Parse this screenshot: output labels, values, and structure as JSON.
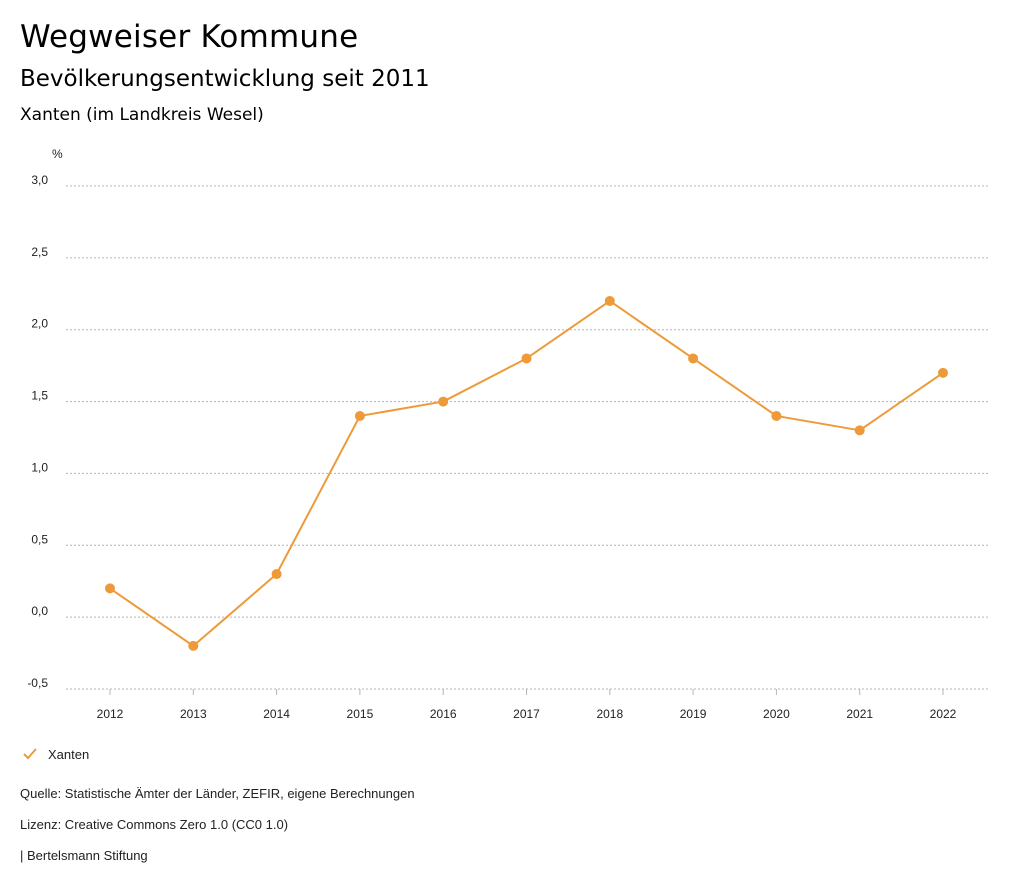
{
  "header": {
    "title": "Wegweiser Kommune",
    "subtitle": "Bevölkerungsentwicklung seit 2011",
    "region": "Xanten (im Landkreis Wesel)"
  },
  "colors": {
    "series": "#EE9A3A",
    "grid": "#B5B5B5",
    "text": "#222222"
  },
  "chart_data": {
    "type": "line",
    "title": "Bevölkerungsentwicklung seit 2011",
    "unit_label": "%",
    "xlabel": "",
    "ylabel": "%",
    "x": [
      "2012",
      "2013",
      "2014",
      "2015",
      "2016",
      "2017",
      "2018",
      "2019",
      "2020",
      "2021",
      "2022"
    ],
    "series": [
      {
        "name": "Xanten",
        "values": [
          0.2,
          -0.2,
          0.3,
          1.4,
          1.5,
          1.8,
          2.2,
          1.8,
          1.4,
          1.3,
          1.7
        ]
      }
    ],
    "ylim": [
      -0.5,
      3.0
    ],
    "yticks": [
      3.0,
      2.5,
      2.0,
      1.5,
      1.0,
      0.5,
      0.0,
      -0.5
    ],
    "ytick_labels": [
      "3,0",
      "2,5",
      "2,0",
      "1,5",
      "1,0",
      "0,5",
      "0,0",
      "-0,5"
    ],
    "grid": true,
    "legend_position": "bottom-left"
  },
  "legend": {
    "label": "Xanten",
    "icon": "checkmark-icon"
  },
  "footer": {
    "source": "Quelle: Statistische Ämter der Länder, ZEFIR, eigene Berechnungen",
    "license": "Lizenz: Creative Commons Zero 1.0 (CC0 1.0)",
    "publisher": "| Bertelsmann Stiftung"
  }
}
